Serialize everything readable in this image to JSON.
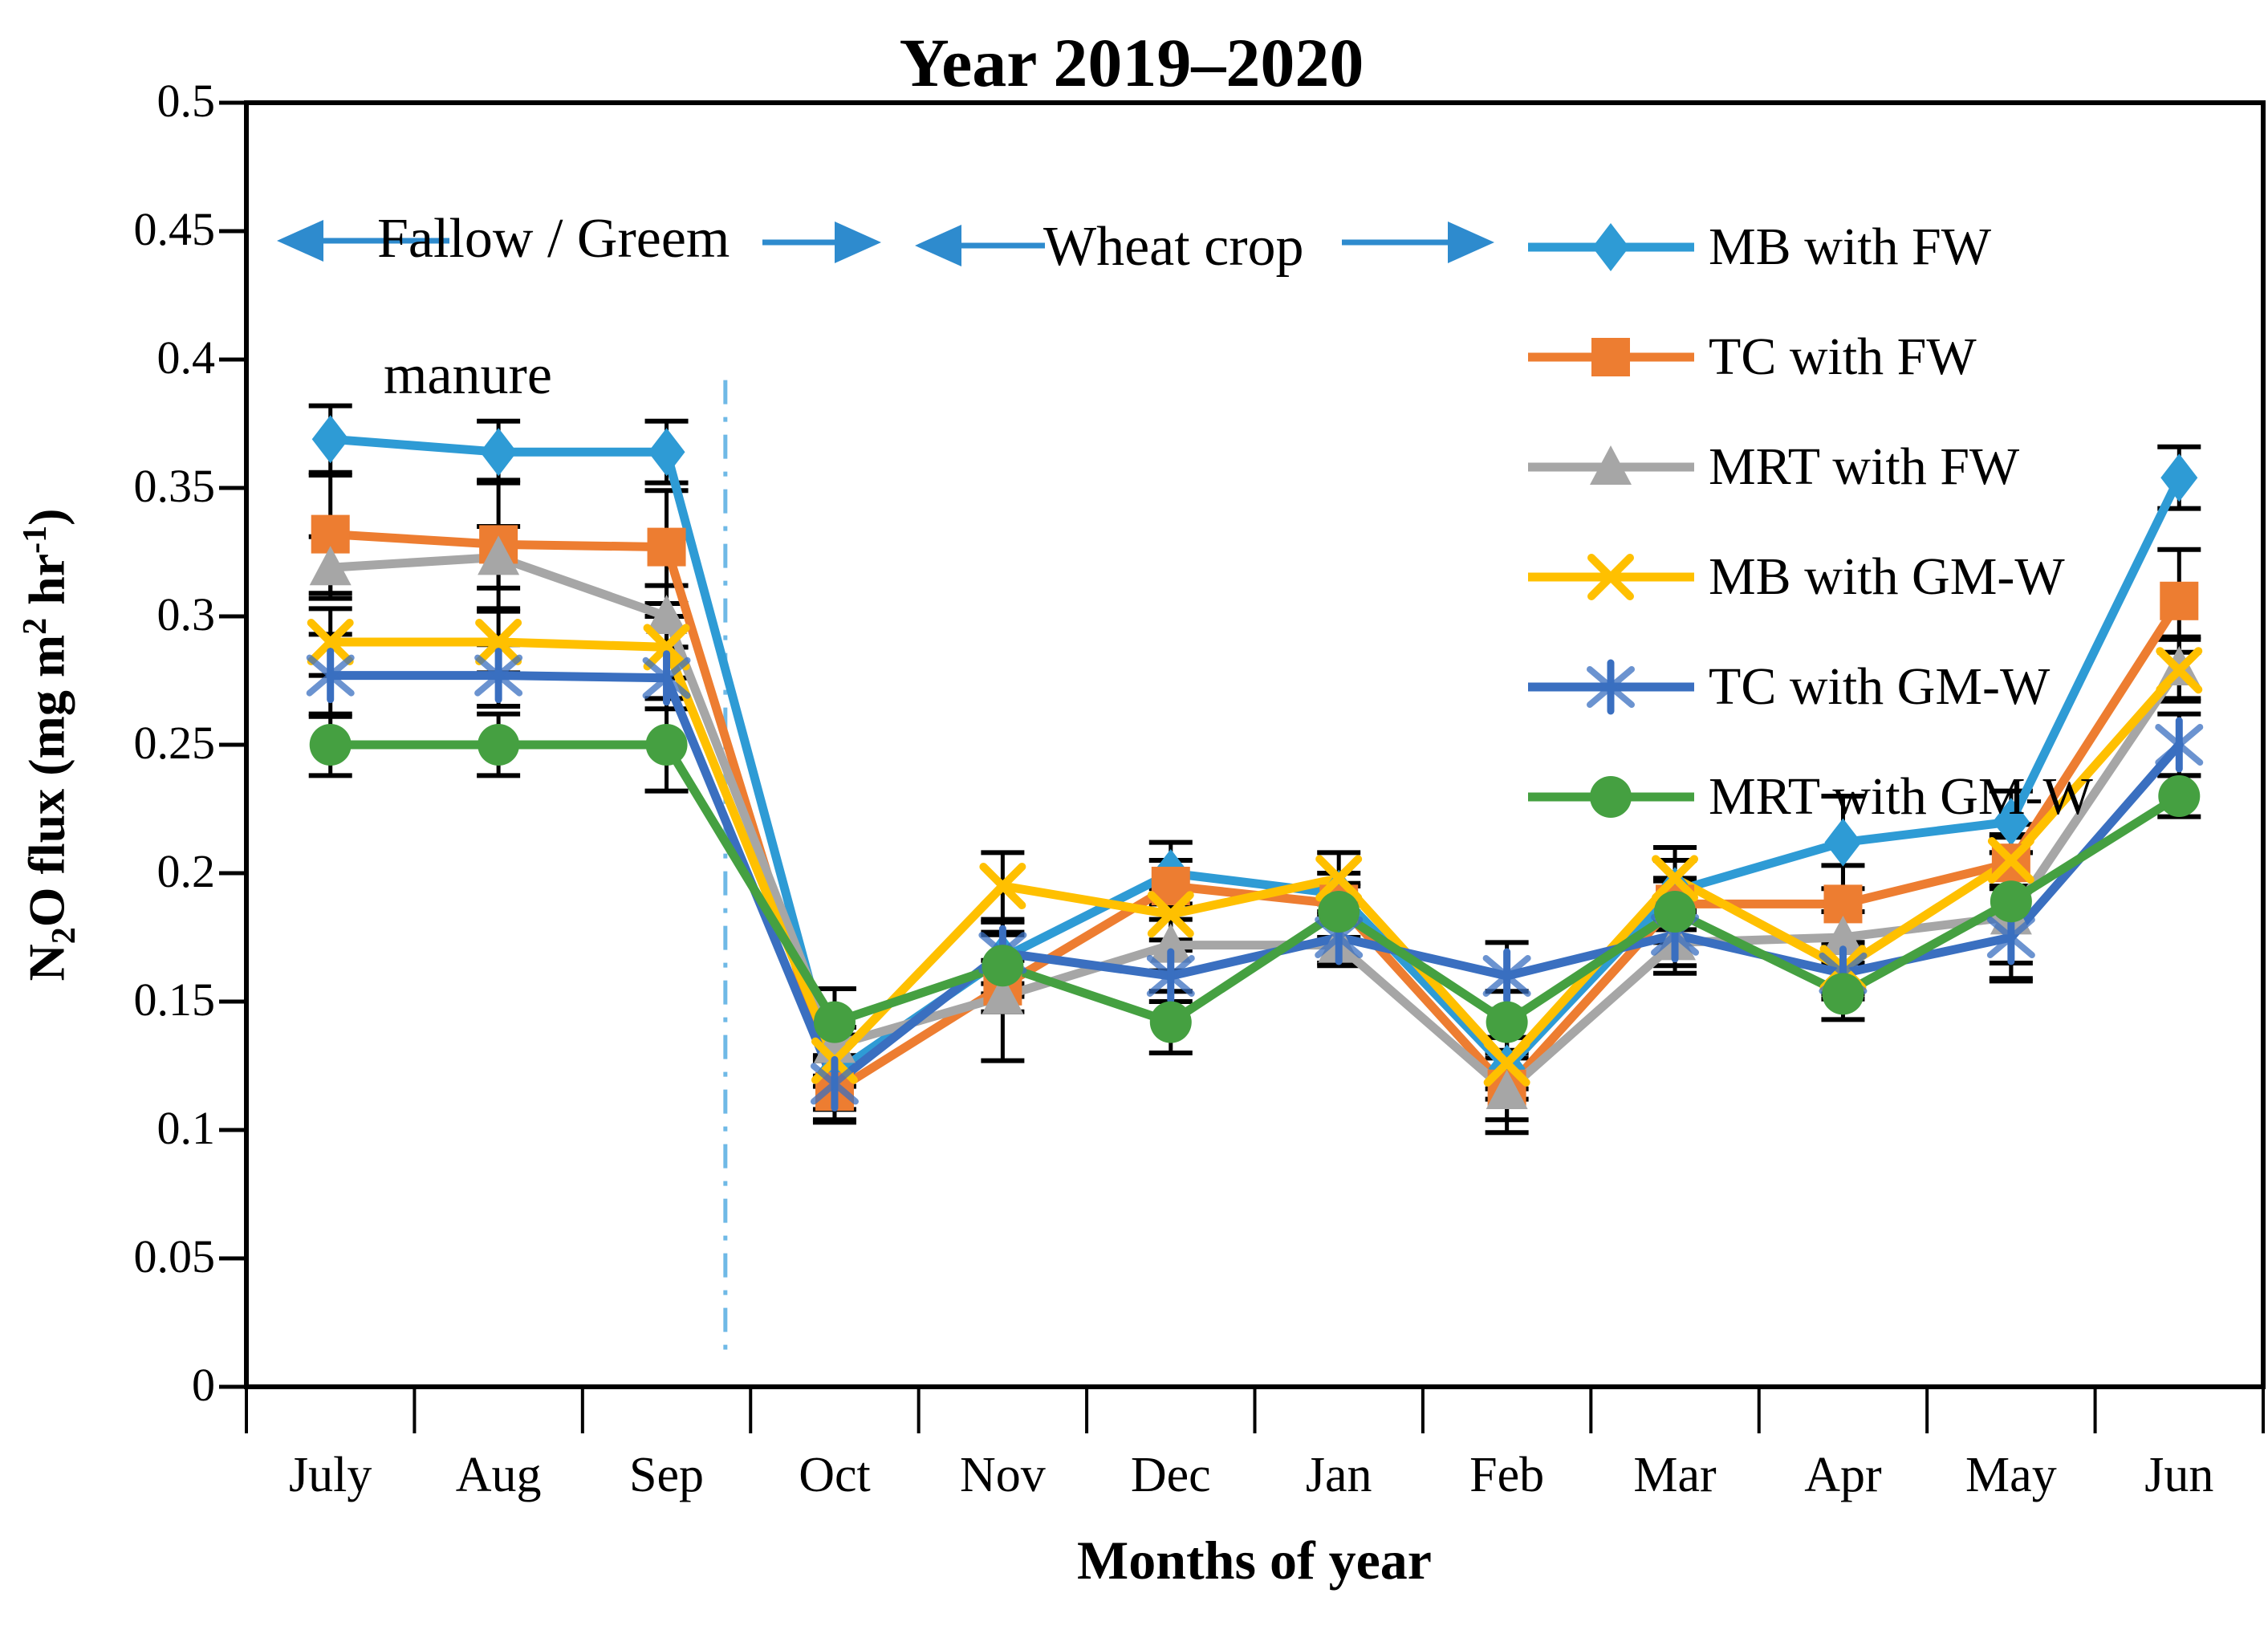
{
  "chart_data": {
    "type": "line",
    "title": "Year 2019–2020",
    "xlabel": "Months of year",
    "ylabel": "N2O flux (mg m2 hr-1)",
    "ylabel_parts": [
      [
        "",
        "N"
      ],
      [
        "sub",
        "2"
      ],
      [
        "",
        "O flux (mg  m"
      ],
      [
        "sup",
        "2"
      ],
      [
        "",
        " hr"
      ],
      [
        "sup",
        "-1"
      ],
      [
        "",
        ")"
      ]
    ],
    "ylim": [
      0,
      0.5
    ],
    "ytick_labels": [
      "0.5",
      "0.45",
      "0.4",
      "0.35",
      "0.3",
      "0.25",
      "0.2",
      "0.15",
      "0.1",
      "0.05",
      "0"
    ],
    "grid": false,
    "legend_position": "inside-top-right",
    "categories": [
      "July",
      "Aug",
      "Sep",
      "Oct",
      "Nov",
      "Dec",
      "Jan",
      "Feb",
      "Mar",
      "Apr",
      "May",
      "Jun"
    ],
    "series": [
      {
        "name": "MB with FW",
        "color": "#2E9BD5",
        "marker": "diamond",
        "values": [
          0.369,
          0.364,
          0.364,
          0.122,
          0.167,
          0.2,
          0.192,
          0.124,
          0.193,
          0.212,
          0.22,
          0.354
        ],
        "errors": [
          0.013,
          0.012,
          0.012,
          0.018,
          0.014,
          0.012,
          0.008,
          0.012,
          0.012,
          0.018,
          0.012,
          0.012
        ]
      },
      {
        "name": "TC with FW",
        "color": "#ED7D31",
        "marker": "square",
        "values": [
          0.332,
          0.328,
          0.327,
          0.115,
          0.156,
          0.195,
          0.188,
          0.116,
          0.188,
          0.188,
          0.204,
          0.306
        ],
        "errors": [
          0.023,
          0.025,
          0.022,
          0.012,
          0.01,
          0.01,
          0.008,
          0.012,
          0.01,
          0.015,
          0.01,
          0.02
        ]
      },
      {
        "name": "MRT with FW",
        "color": "#A6A6A6",
        "marker": "triangle",
        "values": [
          0.319,
          0.323,
          0.3,
          0.133,
          0.152,
          0.172,
          0.172,
          0.115,
          0.173,
          0.175,
          0.183,
          0.28
        ],
        "errors": [
          0.012,
          0.012,
          0.012,
          0.012,
          0.025,
          0.01,
          0.008,
          0.016,
          0.012,
          0.01,
          0.025,
          0.012
        ]
      },
      {
        "name": "MB with GM-W",
        "color": "#FFC000",
        "marker": "x",
        "values": [
          0.29,
          0.29,
          0.288,
          0.127,
          0.195,
          0.184,
          0.198,
          0.126,
          0.198,
          0.163,
          0.205,
          0.279
        ],
        "errors": [
          0.013,
          0.012,
          0.012,
          0.01,
          0.013,
          0.01,
          0.01,
          0.01,
          0.012,
          0.01,
          0.01,
          0.012
        ]
      },
      {
        "name": "TC with GM-W",
        "color": "#3A6FC0",
        "marker": "asterisk",
        "values": [
          0.277,
          0.277,
          0.276,
          0.118,
          0.169,
          0.16,
          0.175,
          0.16,
          0.176,
          0.161,
          0.175,
          0.25
        ],
        "errors": [
          0.016,
          0.012,
          0.012,
          0.01,
          0.012,
          0.01,
          0.01,
          0.013,
          0.012,
          0.01,
          0.01,
          0.012
        ]
      },
      {
        "name": "MRT with GM-W",
        "color": "#45A041",
        "marker": "circle",
        "values": [
          0.25,
          0.25,
          0.25,
          0.142,
          0.164,
          0.142,
          0.185,
          0.142,
          0.185,
          0.153,
          0.189,
          0.23
        ],
        "errors": [
          0.012,
          0.012,
          0.018,
          0.013,
          0.012,
          0.012,
          0.01,
          0.012,
          0.012,
          0.01,
          0.03,
          0.008
        ]
      }
    ],
    "annotations": {
      "fallow_line1": "Fallow / Greem",
      "fallow_line2": "manure",
      "wheat": "Wheat crop",
      "arrow_color": "#2E8BCE"
    },
    "season_divider": {
      "x_month_index": 2.85,
      "value_from": 0.013,
      "value_to": 0.392,
      "color": "#6FB9E6",
      "style": "dash-dot"
    }
  }
}
